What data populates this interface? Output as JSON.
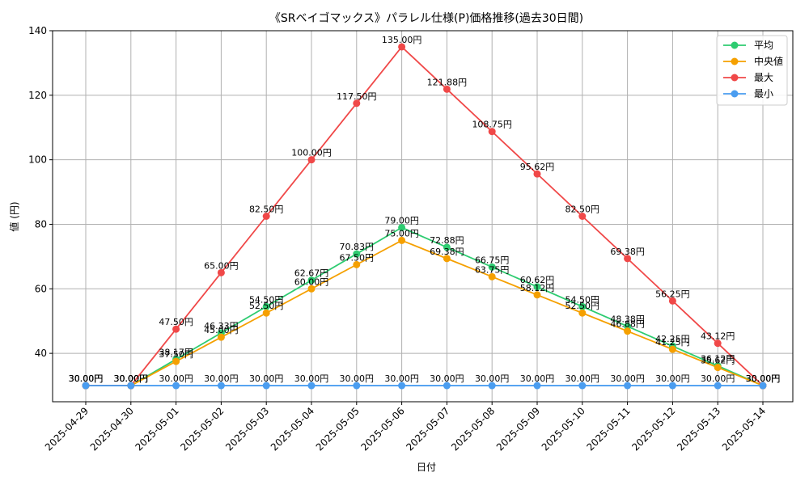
{
  "chart_data": {
    "type": "line",
    "title": "《SRベイゴマックス》パラレル仕様(P)価格推移(過去30日間)",
    "xlabel": "日付",
    "ylabel": "値 (円)",
    "label_suffix": "円",
    "ylim": [
      25,
      140
    ],
    "yticks": [
      40,
      60,
      80,
      100,
      120,
      140
    ],
    "grid": true,
    "legend_position": "top-right",
    "categories": [
      "2025-04-29",
      "2025-04-30",
      "2025-05-01",
      "2025-05-02",
      "2025-05-03",
      "2025-05-04",
      "2025-05-05",
      "2025-05-06",
      "2025-05-07",
      "2025-05-08",
      "2025-05-09",
      "2025-05-10",
      "2025-05-11",
      "2025-05-12",
      "2025-05-13",
      "2025-05-14"
    ],
    "series": [
      {
        "name": "平均",
        "color": "#2ecc71",
        "values": [
          30.0,
          30.0,
          38.17,
          46.33,
          54.5,
          62.67,
          70.83,
          79.0,
          72.88,
          66.75,
          60.62,
          54.5,
          48.38,
          42.25,
          36.12,
          30.0
        ]
      },
      {
        "name": "中央値",
        "color": "#f5a000",
        "values": [
          30.0,
          30.0,
          37.5,
          45.0,
          52.5,
          60.0,
          67.5,
          75.0,
          69.38,
          63.75,
          58.12,
          52.5,
          46.88,
          41.25,
          35.62,
          30.0
        ]
      },
      {
        "name": "最大",
        "color": "#f04848",
        "values": [
          30.0,
          30.0,
          47.5,
          65.0,
          82.5,
          100.0,
          117.5,
          135.0,
          121.88,
          108.75,
          95.62,
          82.5,
          69.38,
          56.25,
          43.12,
          30.0
        ]
      },
      {
        "name": "最小",
        "color": "#4a9df0",
        "values": [
          30.0,
          30.0,
          30.0,
          30.0,
          30.0,
          30.0,
          30.0,
          30.0,
          30.0,
          30.0,
          30.0,
          30.0,
          30.0,
          30.0,
          30.0,
          30.0
        ]
      }
    ]
  }
}
